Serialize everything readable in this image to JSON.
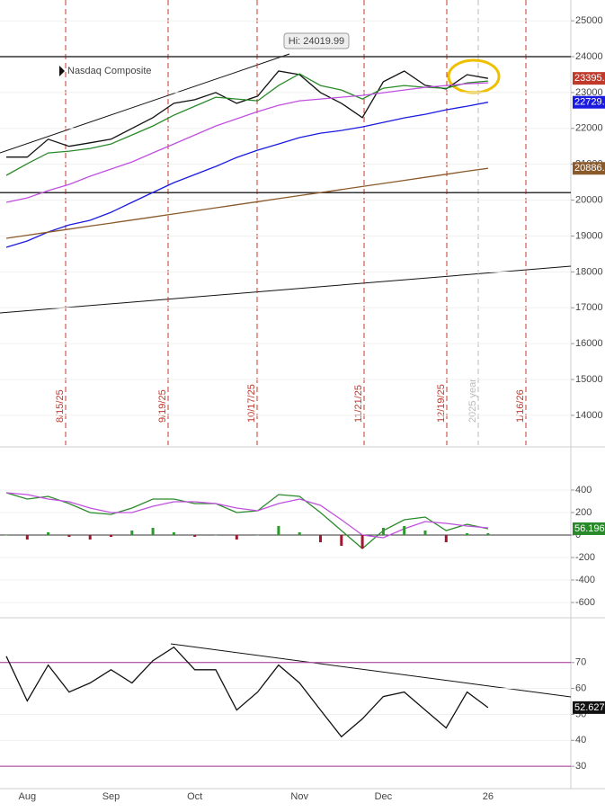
{
  "chart_data": [
    {
      "type": "line",
      "annotation": "Hi: 24019.99",
      "date_markers": [
        "8/15/25",
        "9/19/25",
        "10/17/25",
        "11/21/25",
        "12/19/25",
        "2025 year",
        "1/16/26"
      ],
      "ylim": [
        13170,
        25580
      ],
      "yticks": [
        14000,
        15000,
        16000,
        17000,
        18000,
        19000,
        20000,
        21000,
        22000,
        23000,
        24000,
        25000
      ],
      "reference_lines": [
        24000,
        20210
      ],
      "series": [
        {
          "name": "Nasdaq Composite",
          "color": "#111111",
          "last_label": "23395.",
          "label_color": "#c0392b",
          "values": [
            21200,
            21200,
            21700,
            21500,
            21600,
            21700,
            22000,
            22300,
            22700,
            22800,
            23000,
            22700,
            22900,
            23600,
            23500,
            23000,
            22700,
            22300,
            23300,
            23600,
            23200,
            23100,
            23500,
            23395,
            null,
            null,
            null,
            null
          ]
        },
        {
          "color": "#2a8a2a",
          "values": [
            20690,
            21015,
            21316,
            21366,
            21441,
            21566,
            21817,
            22068,
            22369,
            22619,
            22870,
            22820,
            22770,
            23196,
            23521,
            23196,
            23070,
            22820,
            23120,
            23196,
            23146,
            23120,
            23271,
            23321,
            null,
            null,
            null,
            null
          ]
        },
        {
          "color": "#c050e0",
          "values": [
            19938,
            20063,
            20264,
            20439,
            20665,
            20866,
            21066,
            21317,
            21567,
            21818,
            22068,
            22269,
            22469,
            22644,
            22770,
            22820,
            22870,
            22920,
            22995,
            23070,
            23146,
            23196,
            23246,
            23271,
            null,
            null,
            null,
            null
          ]
        },
        {
          "color": "#1a1ae0",
          "last_label": "22729.",
          "label_color": "#1a1ae0",
          "values": [
            18685,
            18860,
            19111,
            19311,
            19437,
            19662,
            19938,
            20214,
            20489,
            20715,
            20940,
            21191,
            21392,
            21567,
            21743,
            21868,
            21943,
            22043,
            22168,
            22294,
            22394,
            22519,
            22619,
            22729,
            null,
            null,
            null,
            null
          ]
        },
        {
          "color": "#8b5a2b",
          "last_label": "20886.",
          "label_color": "#8b5a2b",
          "values": [
            18936,
            19021,
            19106,
            19191,
            19276,
            19361,
            19446,
            19531,
            19616,
            19701,
            19786,
            19871,
            19956,
            20041,
            20126,
            20211,
            20296,
            20381,
            20466,
            20551,
            20636,
            20721,
            20806,
            20886,
            null,
            null,
            null,
            null
          ]
        }
      ]
    },
    {
      "type": "line",
      "ylim": [
        -720,
        760
      ],
      "yticks": [
        -600,
        -400,
        -200,
        0,
        200,
        400
      ],
      "reference_lines": [
        0
      ],
      "series": [
        {
          "color": "#2a8a2a",
          "last_label": "56.196",
          "label_color": "#2a8a2a",
          "values": [
            376,
            320,
            344,
            280,
            200,
            184,
            240,
            320,
            320,
            280,
            280,
            200,
            216,
            360,
            344,
            200,
            40,
            -120,
            40,
            136,
            160,
            40,
            96,
            56.196,
            null,
            null,
            null,
            null
          ]
        },
        {
          "color": "#c050e0",
          "values": [
            376,
            360,
            320,
            296,
            240,
            200,
            200,
            256,
            296,
            296,
            280,
            240,
            216,
            280,
            320,
            264,
            136,
            0,
            -24,
            56,
            120,
            104,
            80,
            64,
            null,
            null,
            null,
            null
          ]
        },
        {
          "type": "bar",
          "color": "#2a9a2a",
          "negative_color": "#a01830",
          "values": [
            0,
            -40,
            24,
            -16,
            -40,
            -16,
            40,
            64,
            24,
            -16,
            0,
            -40,
            0,
            80,
            24,
            -64,
            -96,
            -120,
            64,
            80,
            40,
            -64,
            16,
            16,
            null,
            null,
            null,
            null
          ]
        }
      ]
    },
    {
      "type": "line",
      "ylim": [
        21.4,
        86.2
      ],
      "yticks": [
        30,
        40,
        50,
        60,
        70
      ],
      "reference_lines": [
        70,
        30
      ],
      "reference_color": "#a03090",
      "categories": [
        null,
        "Aug",
        null,
        null,
        null,
        "Sep",
        null,
        null,
        null,
        "Oct",
        null,
        null,
        null,
        null,
        "Nov",
        null,
        null,
        null,
        "Dec",
        null,
        null,
        null,
        null,
        "26",
        null,
        null,
        null,
        null
      ],
      "series": [
        {
          "color": "#111111",
          "last_label": "52.627",
          "label_color": "#111111",
          "values": [
            72.4,
            55.2,
            69,
            58.6,
            62.1,
            67.2,
            62.1,
            70.7,
            75.9,
            67.2,
            67.2,
            51.7,
            58.6,
            69,
            62.1,
            51.7,
            41.4,
            48.3,
            56.9,
            58.6,
            51.7,
            44.8,
            58.6,
            52.627,
            null,
            null,
            null,
            null
          ]
        }
      ]
    }
  ]
}
